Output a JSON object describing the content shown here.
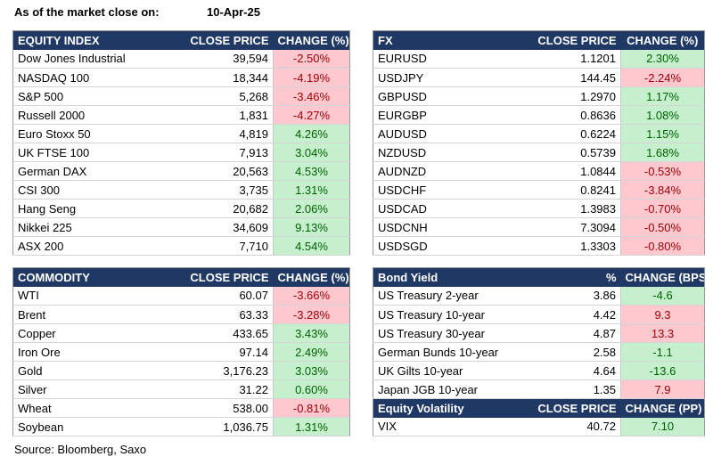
{
  "header": {
    "asof_label": "As of the market close on:",
    "date": "10-Apr-25"
  },
  "equity": {
    "headers": [
      "EQUITY INDEX",
      "CLOSE PRICE",
      "CHANGE (%)"
    ],
    "rows": [
      {
        "name": "Dow Jones Industrial",
        "price": "39,594",
        "change": "-2.50%",
        "dir": "neg"
      },
      {
        "name": "NASDAQ 100",
        "price": "18,344",
        "change": "-4.19%",
        "dir": "neg"
      },
      {
        "name": "S&P 500",
        "price": "5,268",
        "change": "-3.46%",
        "dir": "neg"
      },
      {
        "name": "Russell 2000",
        "price": "1,831",
        "change": "-4.27%",
        "dir": "neg"
      },
      {
        "name": "Euro Stoxx 50",
        "price": "4,819",
        "change": "4.26%",
        "dir": "pos"
      },
      {
        "name": "UK FTSE 100",
        "price": "7,913",
        "change": "3.04%",
        "dir": "pos"
      },
      {
        "name": "German DAX",
        "price": "20,563",
        "change": "4.53%",
        "dir": "pos"
      },
      {
        "name": "CSI 300",
        "price": "3,735",
        "change": "1.31%",
        "dir": "pos"
      },
      {
        "name": "Hang Seng",
        "price": "20,682",
        "change": "2.06%",
        "dir": "pos"
      },
      {
        "name": "Nikkei 225",
        "price": "34,609",
        "change": "9.13%",
        "dir": "pos"
      },
      {
        "name": "ASX 200",
        "price": "7,710",
        "change": "4.54%",
        "dir": "pos"
      }
    ]
  },
  "fx": {
    "headers": [
      "FX",
      "CLOSE PRICE",
      "CHANGE (%)"
    ],
    "rows": [
      {
        "name": "EURUSD",
        "price": "1.1201",
        "change": "2.30%",
        "dir": "pos"
      },
      {
        "name": "USDJPY",
        "price": "144.45",
        "change": "-2.24%",
        "dir": "neg"
      },
      {
        "name": "GBPUSD",
        "price": "1.2970",
        "change": "1.17%",
        "dir": "pos"
      },
      {
        "name": "EURGBP",
        "price": "0.8636",
        "change": "1.08%",
        "dir": "pos"
      },
      {
        "name": "AUDUSD",
        "price": "0.6224",
        "change": "1.15%",
        "dir": "pos"
      },
      {
        "name": "NZDUSD",
        "price": "0.5739",
        "change": "1.68%",
        "dir": "pos"
      },
      {
        "name": "AUDNZD",
        "price": "1.0844",
        "change": "-0.53%",
        "dir": "neg"
      },
      {
        "name": "USDCHF",
        "price": "0.8241",
        "change": "-3.84%",
        "dir": "neg"
      },
      {
        "name": "USDCAD",
        "price": "1.3983",
        "change": "-0.70%",
        "dir": "neg"
      },
      {
        "name": "USDCNH",
        "price": "7.3094",
        "change": "-0.50%",
        "dir": "neg"
      },
      {
        "name": "USDSGD",
        "price": "1.3303",
        "change": "-0.80%",
        "dir": "neg"
      }
    ]
  },
  "commodity": {
    "headers": [
      "COMMODITY",
      "CLOSE PRICE",
      "CHANGE (%)"
    ],
    "rows": [
      {
        "name": "WTI",
        "price": "60.07",
        "change": "-3.66%",
        "dir": "neg"
      },
      {
        "name": "Brent",
        "price": "63.33",
        "change": "-3.28%",
        "dir": "neg"
      },
      {
        "name": "Copper",
        "price": "433.65",
        "change": "3.43%",
        "dir": "pos"
      },
      {
        "name": "Iron Ore",
        "price": "97.14",
        "change": "2.49%",
        "dir": "pos"
      },
      {
        "name": "Gold",
        "price": "3,176.23",
        "change": "3.03%",
        "dir": "pos"
      },
      {
        "name": "Silver",
        "price": "31.22",
        "change": "0.60%",
        "dir": "pos"
      },
      {
        "name": "Wheat",
        "price": "538.00",
        "change": "-0.81%",
        "dir": "neg"
      },
      {
        "name": "Soybean",
        "price": "1,036.75",
        "change": "1.31%",
        "dir": "pos"
      }
    ]
  },
  "bond": {
    "headers": [
      "Bond Yield",
      "%",
      "CHANGE (BPS)"
    ],
    "rows": [
      {
        "name": "US Treasury 2-year",
        "price": "3.86",
        "change": "-4.6",
        "dir": "pos"
      },
      {
        "name": "US Treasury 10-year",
        "price": "4.42",
        "change": "9.3",
        "dir": "neg"
      },
      {
        "name": "US Treasury 30-year",
        "price": "4.87",
        "change": "13.3",
        "dir": "neg"
      },
      {
        "name": "German Bunds 10-year",
        "price": "2.58",
        "change": "-1.1",
        "dir": "pos"
      },
      {
        "name": "UK Gilts 10-year",
        "price": "4.64",
        "change": "-13.6",
        "dir": "pos"
      },
      {
        "name": "Japan JGB 10-year",
        "price": "1.35",
        "change": "7.9",
        "dir": "neg"
      }
    ]
  },
  "volatility": {
    "headers": [
      "Equity Volatility",
      "CLOSE PRICE",
      "CHANGE (PP)"
    ],
    "rows": [
      {
        "name": "VIX",
        "price": "40.72",
        "change": "7.10",
        "dir": "pos"
      }
    ]
  },
  "source": "Source: Bloomberg, Saxo",
  "colors": {
    "header_bg": "#1f3864",
    "positive_bg": "#c6efce",
    "negative_bg": "#ffc7ce"
  }
}
